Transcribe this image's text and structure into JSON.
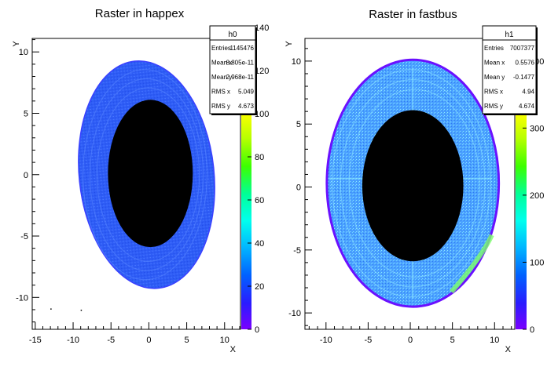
{
  "chart_data": [
    {
      "type": "heatmap",
      "title": "Raster in happex",
      "xlabel": "X",
      "ylabel": "Y",
      "xlim": [
        -15.4,
        12.1
      ],
      "ylim": [
        -12.6,
        11.1
      ],
      "xticks": [
        -15,
        -10,
        -5,
        0,
        5,
        10
      ],
      "yticks": [
        -10,
        -5,
        0,
        5,
        10
      ],
      "grid": false,
      "shape": {
        "outer_center": [
          -0.3,
          0.0
        ],
        "outer_radius_x": 8.9,
        "outer_radius_y": 9.3,
        "inner_center": [
          0.2,
          0.1
        ],
        "inner_radius_x": 5.6,
        "inner_radius_y": 6.0
      },
      "stray_points": [
        [
          -13,
          -10.9
        ],
        [
          -9,
          -11.0
        ]
      ],
      "colorbar": {
        "min": 0,
        "max": 140,
        "ticks": [
          "0",
          "20",
          "40",
          "60",
          "80",
          "100",
          "120",
          "140"
        ]
      },
      "stats": {
        "name": "h0",
        "rows": [
          {
            "label": "Entries",
            "value": "1145476"
          },
          {
            "label": "Mean x",
            "value": "8.805e-11"
          },
          {
            "label": "Mean y",
            "value": "2.968e-11"
          },
          {
            "label": "RMS x",
            "value": "5.049"
          },
          {
            "label": "RMS y",
            "value": "4.673"
          }
        ]
      }
    },
    {
      "type": "heatmap",
      "title": "Raster in fastbus",
      "xlabel": "X",
      "ylabel": "Y",
      "xlim": [
        -12.5,
        12.4
      ],
      "ylim": [
        -11.3,
        11.8
      ],
      "xticks": [
        -10,
        -5,
        0,
        5,
        10
      ],
      "yticks": [
        -10,
        -5,
        0,
        5,
        10
      ],
      "grid": false,
      "shape": {
        "outer_center": [
          0.3,
          0.3
        ],
        "outer_radius_x": 10.2,
        "outer_radius_y": 9.8,
        "inner_center": [
          0.3,
          0.1
        ],
        "inner_radius_x": 6.0,
        "inner_radius_y": 6.0
      },
      "colorbar": {
        "min": 0,
        "max": 450,
        "ticks": [
          "0",
          "100",
          "200",
          "300",
          "400"
        ]
      },
      "stats": {
        "name": "h1",
        "rows": [
          {
            "label": "Entries",
            "value": "7007377"
          },
          {
            "label": "Mean x",
            "value": "0.5576"
          },
          {
            "label": "Mean y",
            "value": "-0.1477"
          },
          {
            "label": "RMS x",
            "value": "4.94"
          },
          {
            "label": "RMS y",
            "value": "4.674"
          }
        ]
      }
    }
  ]
}
